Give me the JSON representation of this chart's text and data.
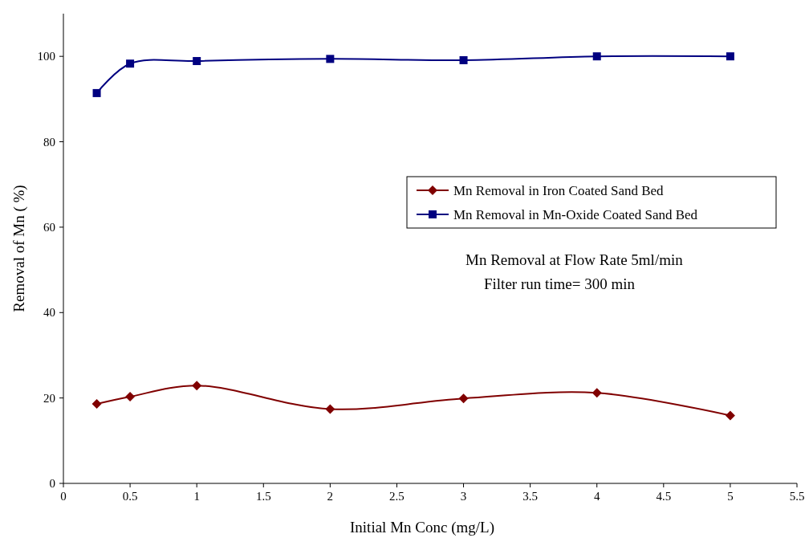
{
  "chart_data": {
    "type": "line",
    "xlabel": "Initial Mn Conc (mg/L)",
    "ylabel": "Removal of Mn ( %)",
    "x": [
      0.25,
      0.5,
      1,
      2,
      3,
      4,
      5
    ],
    "series": [
      {
        "name": "Mn Removal in Iron Coated Sand Bed",
        "color": "#800000",
        "marker": "diamond",
        "values": [
          18.6,
          20.3,
          22.9,
          17.4,
          19.9,
          21.2,
          15.9
        ]
      },
      {
        "name": "Mn Removal in Mn-Oxide Coated Sand Bed",
        "color": "#000080",
        "marker": "square",
        "values": [
          91.4,
          98.3,
          98.9,
          99.4,
          99.1,
          100,
          100
        ]
      }
    ],
    "xlim": [
      0,
      5.5
    ],
    "xticks": [
      0,
      0.5,
      1,
      1.5,
      2,
      2.5,
      3,
      3.5,
      4,
      4.5,
      5,
      5.5
    ],
    "ylim": [
      0,
      110
    ],
    "yticks": [
      0,
      20,
      40,
      60,
      80,
      100
    ],
    "grid": false,
    "legend": "right",
    "annotations": [
      "Mn Removal at Flow Rate 5ml/min",
      "Filter run time= 300 min"
    ]
  }
}
